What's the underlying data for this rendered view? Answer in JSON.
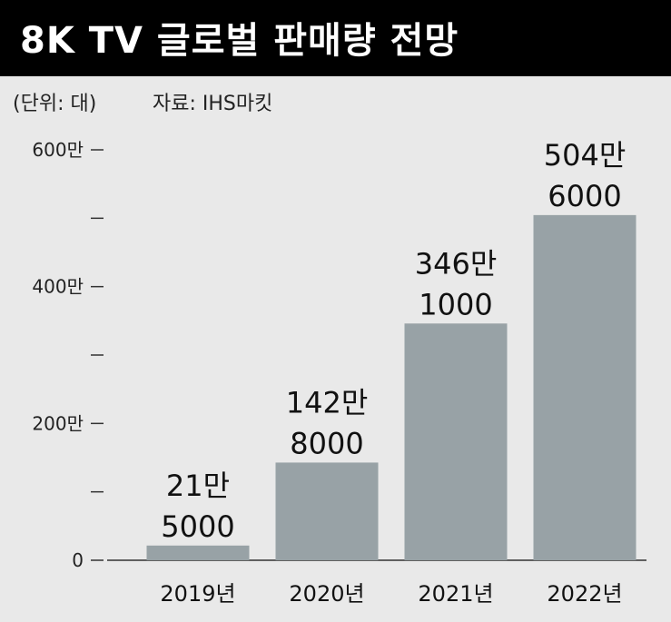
{
  "title": "8K TV 글로벌 판매량 전망",
  "unit": "(단위: 대)",
  "source": "자료: IHS마킷",
  "colors": {
    "bar": "#98a2a6",
    "background": "#e9e9e9",
    "title_bg": "#000000",
    "axis": "#333333"
  },
  "chart_data": {
    "type": "bar",
    "title": "8K TV 글로벌 판매량 전망",
    "categories": [
      "2019년",
      "2020년",
      "2021년",
      "2022년"
    ],
    "values": [
      215000,
      1428000,
      3461000,
      5046000
    ],
    "value_labels": [
      [
        "21만",
        "5000"
      ],
      [
        "142만",
        "8000"
      ],
      [
        "346만",
        "1000"
      ],
      [
        "504만",
        "6000"
      ]
    ],
    "ylim": [
      0,
      6000000
    ],
    "yticks": [
      0,
      1000000,
      2000000,
      3000000,
      4000000,
      5000000,
      6000000
    ],
    "ytick_labels": [
      "0",
      "",
      "200만",
      "",
      "400만",
      "",
      "600만"
    ],
    "xlabel": "",
    "ylabel": "",
    "grid": false,
    "legend": "none"
  }
}
